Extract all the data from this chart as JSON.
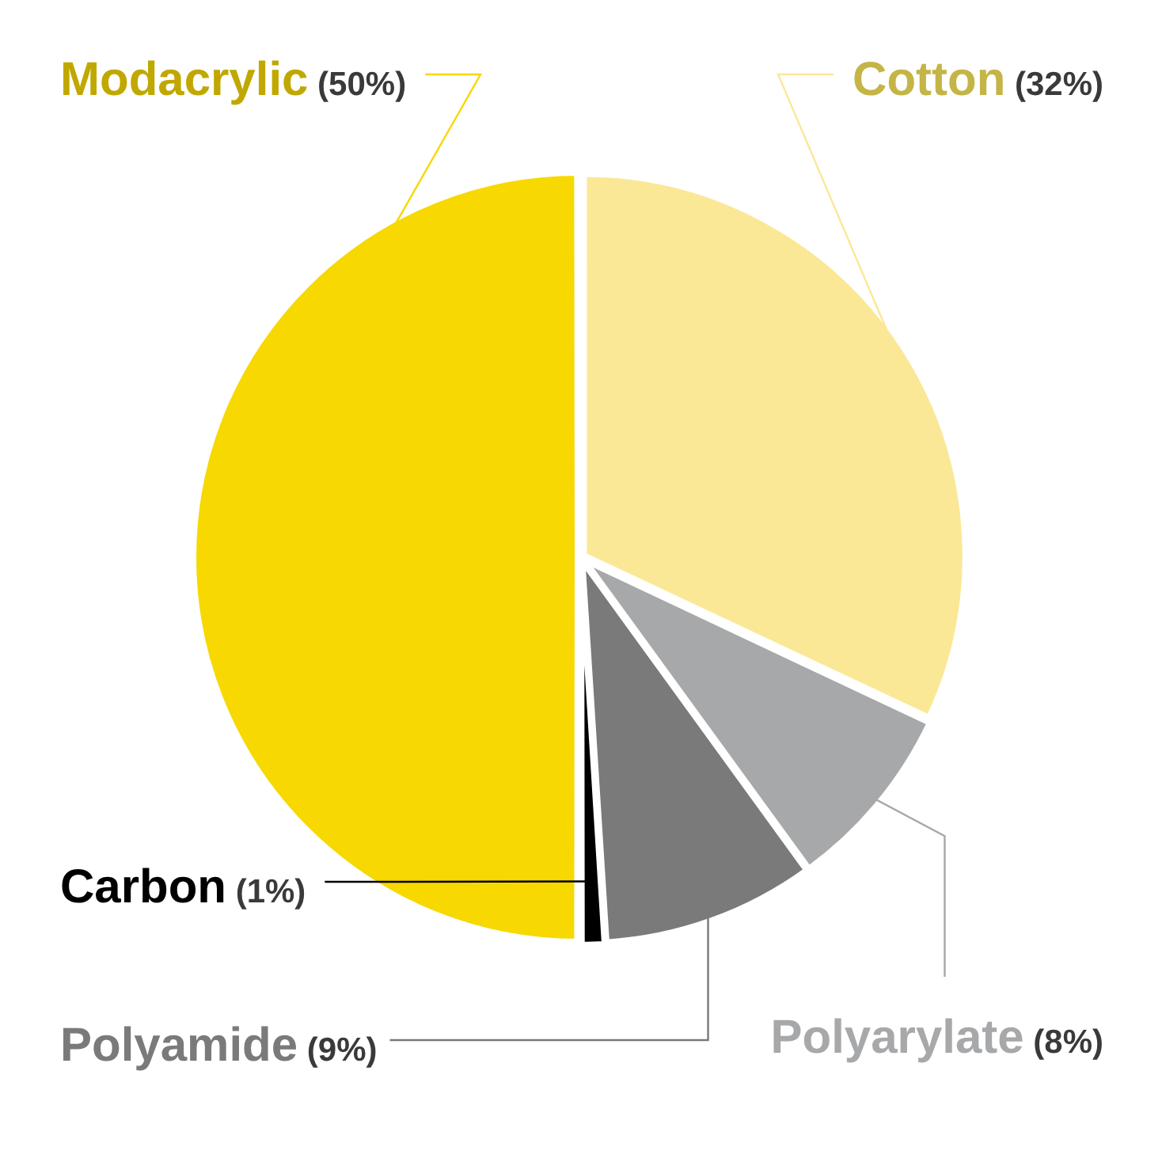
{
  "chart_data": {
    "type": "pie",
    "categories": [
      "Cotton",
      "Polyarylate",
      "Polyamide",
      "Carbon",
      "Modacrylic"
    ],
    "values": [
      32,
      8,
      9,
      1,
      50
    ],
    "colors": [
      "#fbe896",
      "#a7a8aa",
      "#7a7a7b",
      "#000000",
      "#f7d800"
    ],
    "value_labels": [
      "(32%)",
      "(8%)",
      "(9%)",
      "(1%)",
      "(50%)"
    ],
    "legend": false
  }
}
